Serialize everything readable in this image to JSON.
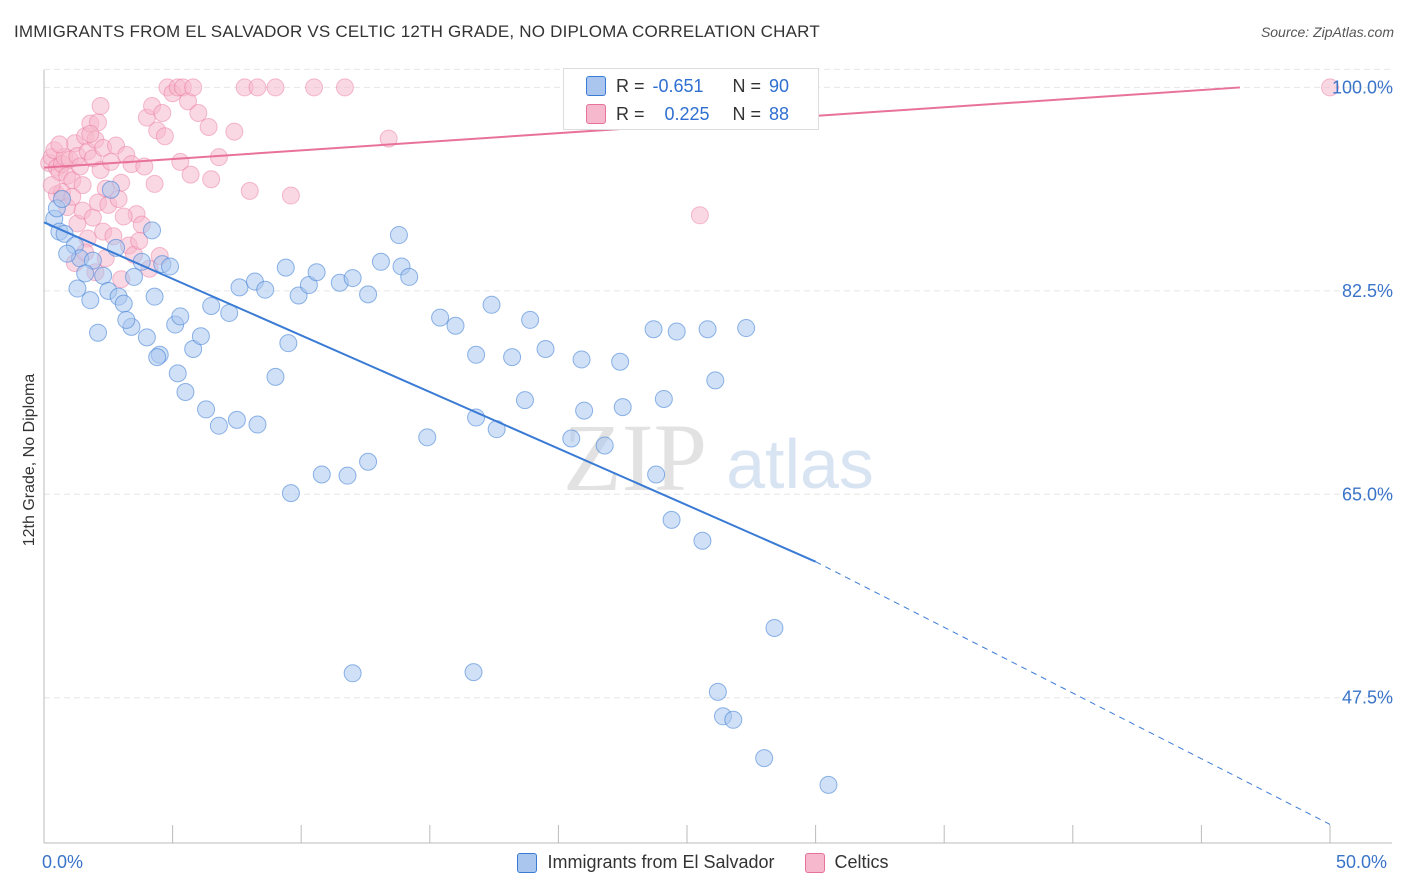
{
  "title": "IMMIGRANTS FROM EL SALVADOR VS CELTIC 12TH GRADE, NO DIPLOMA CORRELATION CHART",
  "source": "Source: ZipAtlas.com",
  "watermark": {
    "zip": "ZIP",
    "atlas": "atlas"
  },
  "colors": {
    "blue": "#3a7bd5",
    "blue_fill": "#aac6ee",
    "pink": "#e8729a",
    "pink_fill": "#f5b8cc",
    "grid": "#e6e6e6",
    "axis_text": "#3a74c9"
  },
  "stats": [
    {
      "r_label": "R =",
      "r_value": "-0.651",
      "n_label": "N =",
      "n_value": "90"
    },
    {
      "r_label": "R =",
      "r_value": "0.225",
      "n_label": "N =",
      "n_value": "88"
    }
  ],
  "x_ticks": {
    "min": "0.0%",
    "max": "50.0%"
  },
  "chart_data": {
    "type": "scatter",
    "title": "IMMIGRANTS FROM EL SALVADOR VS CELTIC 12TH GRADE, NO DIPLOMA CORRELATION CHART",
    "xlabel": "",
    "ylabel": "12th Grade, No Diploma",
    "xlim": [
      0,
      50
    ],
    "ylim": [
      35.0,
      101.5
    ],
    "y_ticks": [
      47.5,
      65.0,
      82.5,
      100.0
    ],
    "y_tick_labels": [
      "47.5%",
      "65.0%",
      "82.5%",
      "100.0%"
    ],
    "x_tick_labels": [
      "0.0%",
      "50.0%"
    ],
    "grid": true,
    "legend_position": "bottom",
    "series": [
      {
        "name": "Immigrants from El Salvador",
        "color": "#3a7bd5",
        "r": -0.651,
        "n": 90,
        "trend": {
          "x0": 0,
          "y0": 88.4,
          "x1": 30,
          "y1": 59.2,
          "dash_to_x": 50,
          "dash_to_y": 36.6
        },
        "points": [
          [
            0.4,
            88.7
          ],
          [
            0.6,
            87.6
          ],
          [
            0.8,
            87.4
          ],
          [
            1.2,
            86.4
          ],
          [
            1.4,
            85.3
          ],
          [
            1.9,
            85.1
          ],
          [
            1.6,
            84.0
          ],
          [
            2.3,
            83.8
          ],
          [
            2.5,
            82.5
          ],
          [
            2.9,
            82.0
          ],
          [
            3.1,
            81.4
          ],
          [
            4.2,
            87.7
          ],
          [
            2.6,
            91.2
          ],
          [
            2.8,
            86.2
          ],
          [
            3.8,
            85.0
          ],
          [
            3.5,
            83.7
          ],
          [
            4.6,
            84.8
          ],
          [
            4.9,
            84.6
          ],
          [
            4.3,
            82.0
          ],
          [
            3.4,
            79.4
          ],
          [
            5.1,
            79.6
          ],
          [
            5.3,
            80.3
          ],
          [
            4.5,
            77.0
          ],
          [
            5.8,
            77.5
          ],
          [
            6.1,
            78.6
          ],
          [
            6.5,
            81.2
          ],
          [
            7.2,
            80.6
          ],
          [
            7.6,
            82.8
          ],
          [
            8.2,
            83.3
          ],
          [
            8.6,
            82.6
          ],
          [
            9.4,
            84.5
          ],
          [
            9.9,
            82.1
          ],
          [
            10.3,
            83.0
          ],
          [
            10.6,
            84.1
          ],
          [
            11.5,
            83.2
          ],
          [
            12.0,
            83.6
          ],
          [
            12.6,
            82.2
          ],
          [
            13.1,
            85.0
          ],
          [
            13.9,
            84.6
          ],
          [
            14.2,
            83.7
          ],
          [
            13.8,
            87.3
          ],
          [
            15.4,
            80.2
          ],
          [
            16.0,
            79.5
          ],
          [
            16.8,
            77.0
          ],
          [
            18.2,
            76.8
          ],
          [
            17.4,
            81.3
          ],
          [
            18.9,
            80.0
          ],
          [
            19.5,
            77.5
          ],
          [
            20.9,
            76.6
          ],
          [
            22.4,
            76.4
          ],
          [
            23.7,
            79.2
          ],
          [
            24.6,
            79.0
          ],
          [
            25.8,
            79.2
          ],
          [
            26.1,
            74.8
          ],
          [
            27.3,
            79.3
          ],
          [
            24.1,
            73.2
          ],
          [
            22.5,
            72.5
          ],
          [
            21.0,
            72.2
          ],
          [
            20.5,
            69.8
          ],
          [
            18.7,
            73.1
          ],
          [
            17.6,
            70.6
          ],
          [
            16.8,
            71.6
          ],
          [
            14.9,
            69.9
          ],
          [
            12.6,
            67.8
          ],
          [
            11.8,
            66.6
          ],
          [
            10.8,
            66.7
          ],
          [
            9.6,
            65.1
          ],
          [
            8.3,
            71.0
          ],
          [
            7.5,
            71.4
          ],
          [
            6.8,
            70.9
          ],
          [
            6.3,
            72.3
          ],
          [
            5.5,
            73.8
          ],
          [
            5.2,
            75.4
          ],
          [
            4.4,
            76.8
          ],
          [
            4.0,
            78.5
          ],
          [
            3.2,
            80.0
          ],
          [
            2.1,
            78.9
          ],
          [
            1.8,
            81.7
          ],
          [
            1.3,
            82.7
          ],
          [
            0.9,
            85.7
          ],
          [
            0.5,
            89.6
          ],
          [
            0.7,
            90.4
          ],
          [
            9.0,
            75.1
          ],
          [
            9.5,
            78.0
          ],
          [
            21.8,
            69.2
          ],
          [
            23.8,
            66.7
          ],
          [
            24.4,
            62.8
          ],
          [
            25.6,
            61.0
          ],
          [
            28.4,
            53.5
          ],
          [
            12.0,
            49.6
          ],
          [
            16.7,
            49.7
          ],
          [
            26.4,
            45.9
          ],
          [
            26.8,
            45.6
          ],
          [
            26.2,
            48.0
          ],
          [
            28.0,
            42.3
          ],
          [
            30.5,
            40.0
          ]
        ]
      },
      {
        "name": "Celtics",
        "color": "#e8729a",
        "r": 0.225,
        "n": 88,
        "trend": {
          "x0": 0,
          "y0": 93.1,
          "x1": 46.5,
          "y1": 100.0
        },
        "points": [
          [
            0.2,
            93.5
          ],
          [
            0.3,
            94.0
          ],
          [
            0.4,
            94.6
          ],
          [
            0.5,
            93.1
          ],
          [
            0.6,
            92.7
          ],
          [
            0.7,
            93.4
          ],
          [
            0.8,
            94.0
          ],
          [
            0.9,
            92.4
          ],
          [
            1.0,
            93.8
          ],
          [
            1.1,
            92.0
          ],
          [
            1.2,
            95.2
          ],
          [
            1.3,
            94.1
          ],
          [
            1.4,
            93.2
          ],
          [
            1.5,
            91.6
          ],
          [
            1.6,
            95.8
          ],
          [
            1.7,
            94.5
          ],
          [
            1.8,
            96.9
          ],
          [
            1.9,
            93.9
          ],
          [
            2.0,
            95.5
          ],
          [
            2.1,
            97.0
          ],
          [
            2.2,
            92.9
          ],
          [
            2.3,
            94.8
          ],
          [
            2.4,
            91.3
          ],
          [
            2.6,
            93.6
          ],
          [
            2.8,
            95.0
          ],
          [
            3.0,
            91.8
          ],
          [
            3.2,
            94.2
          ],
          [
            3.4,
            93.4
          ],
          [
            3.6,
            89.1
          ],
          [
            3.8,
            88.2
          ],
          [
            4.0,
            97.4
          ],
          [
            4.2,
            98.4
          ],
          [
            4.4,
            96.3
          ],
          [
            4.6,
            97.8
          ],
          [
            4.8,
            100.0
          ],
          [
            5.0,
            99.5
          ],
          [
            5.2,
            100.0
          ],
          [
            5.4,
            100.0
          ],
          [
            5.6,
            98.8
          ],
          [
            5.8,
            100.0
          ],
          [
            0.5,
            90.8
          ],
          [
            0.7,
            91.0
          ],
          [
            0.9,
            89.7
          ],
          [
            1.1,
            90.6
          ],
          [
            1.3,
            88.3
          ],
          [
            1.5,
            89.4
          ],
          [
            1.7,
            87.0
          ],
          [
            1.9,
            88.8
          ],
          [
            2.1,
            90.1
          ],
          [
            2.3,
            87.6
          ],
          [
            2.5,
            89.9
          ],
          [
            2.7,
            87.2
          ],
          [
            2.9,
            90.4
          ],
          [
            3.1,
            88.9
          ],
          [
            3.3,
            86.4
          ],
          [
            3.5,
            85.6
          ],
          [
            1.2,
            84.9
          ],
          [
            1.6,
            85.8
          ],
          [
            2.0,
            84.1
          ],
          [
            2.4,
            85.3
          ],
          [
            3.0,
            83.5
          ],
          [
            3.7,
            86.8
          ],
          [
            4.1,
            84.4
          ],
          [
            4.5,
            85.5
          ],
          [
            6.0,
            97.8
          ],
          [
            6.8,
            94.0
          ],
          [
            7.4,
            96.2
          ],
          [
            7.8,
            100.0
          ],
          [
            8.3,
            100.0
          ],
          [
            9.0,
            100.0
          ],
          [
            10.5,
            100.0
          ],
          [
            11.7,
            100.0
          ],
          [
            3.9,
            93.2
          ],
          [
            4.3,
            91.7
          ],
          [
            4.7,
            95.8
          ],
          [
            5.3,
            93.6
          ],
          [
            5.7,
            92.5
          ],
          [
            6.4,
            96.6
          ],
          [
            6.5,
            92.1
          ],
          [
            8.0,
            91.1
          ],
          [
            9.6,
            90.7
          ],
          [
            13.4,
            95.6
          ],
          [
            25.5,
            89.0
          ],
          [
            50.0,
            100.0
          ],
          [
            0.3,
            91.6
          ],
          [
            0.6,
            95.1
          ],
          [
            1.8,
            96.0
          ],
          [
            2.2,
            98.4
          ]
        ]
      }
    ]
  }
}
